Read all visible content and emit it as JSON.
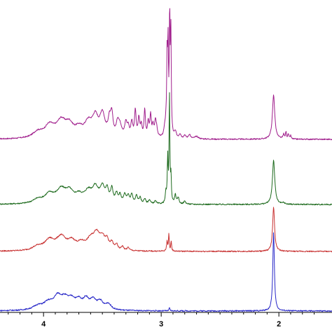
{
  "chart_data": {
    "type": "line",
    "title": "",
    "xlabel": "",
    "ylabel": "",
    "x_reversed": true,
    "xlim": [
      4.35,
      1.65
    ],
    "x_major_ticks": [
      4,
      3,
      2
    ],
    "x_tick_labels": [
      "4",
      "3",
      "2"
    ],
    "x_minor_step": 0.1,
    "grid": false,
    "legend": "none",
    "series": [
      {
        "color": "#a01e8c",
        "baseline": 0,
        "peaks": [
          [
            4.05,
            1.2,
            0.05
          ],
          [
            3.95,
            2.4,
            0.05
          ],
          [
            3.85,
            3.2,
            0.05
          ],
          [
            3.78,
            2.2,
            0.04
          ],
          [
            3.7,
            1.6,
            0.04
          ],
          [
            3.62,
            2.8,
            0.04
          ],
          [
            3.56,
            3.8,
            0.03
          ],
          [
            3.5,
            4.5,
            0.025
          ],
          [
            3.44,
            3.2,
            0.015
          ],
          [
            3.42,
            4.0,
            0.012
          ],
          [
            3.37,
            2.6,
            0.015
          ],
          [
            3.35,
            2.0,
            0.02
          ],
          [
            3.3,
            2.8,
            0.012
          ],
          [
            3.28,
            1.8,
            0.01
          ],
          [
            3.25,
            3.0,
            0.01
          ],
          [
            3.22,
            5.4,
            0.008
          ],
          [
            3.19,
            3.8,
            0.008
          ],
          [
            3.17,
            2.4,
            0.008
          ],
          [
            3.14,
            5.6,
            0.007
          ],
          [
            3.11,
            3.0,
            0.008
          ],
          [
            3.09,
            4.4,
            0.007
          ],
          [
            3.07,
            2.2,
            0.008
          ],
          [
            3.05,
            2.6,
            0.008
          ],
          [
            3.04,
            1.8,
            0.01
          ],
          [
            2.97,
            1.5,
            0.01
          ],
          [
            2.96,
            2.0,
            0.006
          ],
          [
            2.95,
            15.0,
            0.004
          ],
          [
            2.942,
            17.5,
            0.004
          ],
          [
            2.928,
            24.0,
            0.004
          ],
          [
            2.918,
            20.5,
            0.004
          ],
          [
            2.88,
            1.2,
            0.01
          ],
          [
            2.84,
            0.9,
            0.01
          ],
          [
            2.8,
            0.7,
            0.01
          ],
          [
            2.76,
            0.9,
            0.01
          ],
          [
            2.7,
            0.5,
            0.02
          ],
          [
            2.045,
            9.0,
            0.012
          ],
          [
            1.96,
            0.9,
            0.006
          ],
          [
            1.94,
            1.4,
            0.005
          ],
          [
            1.92,
            1.0,
            0.005
          ],
          [
            1.9,
            0.7,
            0.005
          ]
        ]
      },
      {
        "color": "#1e6b1e",
        "baseline": 0,
        "peaks": [
          [
            4.05,
            0.8,
            0.05
          ],
          [
            3.95,
            1.8,
            0.05
          ],
          [
            3.85,
            2.6,
            0.05
          ],
          [
            3.78,
            2.0,
            0.04
          ],
          [
            3.7,
            1.4,
            0.04
          ],
          [
            3.62,
            2.2,
            0.04
          ],
          [
            3.56,
            2.8,
            0.03
          ],
          [
            3.5,
            3.0,
            0.025
          ],
          [
            3.46,
            2.4,
            0.015
          ],
          [
            3.42,
            2.8,
            0.012
          ],
          [
            3.38,
            1.8,
            0.012
          ],
          [
            3.35,
            1.6,
            0.012
          ],
          [
            3.31,
            1.7,
            0.012
          ],
          [
            3.28,
            1.5,
            0.012
          ],
          [
            3.25,
            1.8,
            0.01
          ],
          [
            3.21,
            1.6,
            0.01
          ],
          [
            3.18,
            1.2,
            0.01
          ],
          [
            3.14,
            1.0,
            0.01
          ],
          [
            3.1,
            0.8,
            0.01
          ],
          [
            3.05,
            0.6,
            0.01
          ],
          [
            2.96,
            2.2,
            0.006
          ],
          [
            2.945,
            9.0,
            0.004
          ],
          [
            2.93,
            22.0,
            0.004
          ],
          [
            2.917,
            5.0,
            0.004
          ],
          [
            2.88,
            1.8,
            0.008
          ],
          [
            2.855,
            1.2,
            0.008
          ],
          [
            2.8,
            0.6,
            0.01
          ],
          [
            2.045,
            9.0,
            0.012
          ],
          [
            1.96,
            0.3,
            0.01
          ]
        ]
      },
      {
        "color": "#c83232",
        "baseline": 0,
        "peaks": [
          [
            4.05,
            0.8,
            0.05
          ],
          [
            3.95,
            2.0,
            0.05
          ],
          [
            3.85,
            2.6,
            0.05
          ],
          [
            3.76,
            1.6,
            0.04
          ],
          [
            3.68,
            1.2,
            0.04
          ],
          [
            3.6,
            2.0,
            0.04
          ],
          [
            3.55,
            2.8,
            0.03
          ],
          [
            3.5,
            2.4,
            0.03
          ],
          [
            3.46,
            1.6,
            0.015
          ],
          [
            3.42,
            1.4,
            0.015
          ],
          [
            3.38,
            1.1,
            0.012
          ],
          [
            3.33,
            0.8,
            0.012
          ],
          [
            3.28,
            0.6,
            0.012
          ],
          [
            2.95,
            2.0,
            0.005
          ],
          [
            2.935,
            3.4,
            0.004
          ],
          [
            2.915,
            2.0,
            0.004
          ],
          [
            2.045,
            9.0,
            0.01
          ]
        ]
      },
      {
        "color": "#2828c8",
        "baseline": 0,
        "peaks": [
          [
            4.05,
            0.8,
            0.05
          ],
          [
            3.96,
            1.4,
            0.05
          ],
          [
            3.88,
            2.4,
            0.04
          ],
          [
            3.82,
            1.8,
            0.04
          ],
          [
            3.76,
            1.8,
            0.04
          ],
          [
            3.7,
            1.5,
            0.03
          ],
          [
            3.64,
            2.0,
            0.03
          ],
          [
            3.58,
            1.8,
            0.03
          ],
          [
            3.52,
            1.6,
            0.03
          ],
          [
            3.45,
            1.2,
            0.03
          ],
          [
            2.93,
            0.6,
            0.004
          ],
          [
            2.045,
            16.0,
            0.008
          ]
        ]
      }
    ]
  }
}
